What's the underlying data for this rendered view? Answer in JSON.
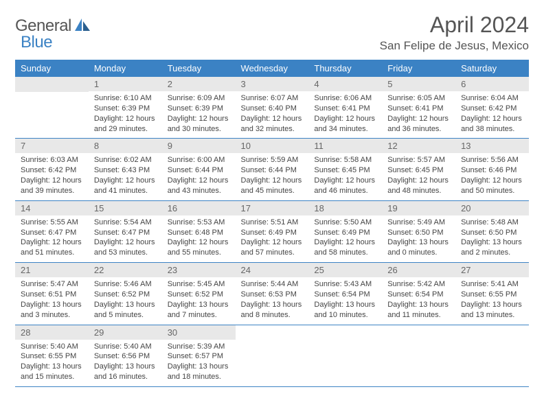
{
  "brand": {
    "general": "General",
    "blue": "Blue"
  },
  "title": "April 2024",
  "location": "San Felipe de Jesus, Mexico",
  "colors": {
    "accent": "#3b82c4",
    "header_text": "#ffffff",
    "daynum_bg": "#e8e8e8",
    "text": "#444444"
  },
  "weekdays": [
    "Sunday",
    "Monday",
    "Tuesday",
    "Wednesday",
    "Thursday",
    "Friday",
    "Saturday"
  ],
  "weeks": [
    [
      null,
      {
        "n": "1",
        "sr": "Sunrise: 6:10 AM",
        "ss": "Sunset: 6:39 PM",
        "dl": "Daylight: 12 hours and 29 minutes."
      },
      {
        "n": "2",
        "sr": "Sunrise: 6:09 AM",
        "ss": "Sunset: 6:39 PM",
        "dl": "Daylight: 12 hours and 30 minutes."
      },
      {
        "n": "3",
        "sr": "Sunrise: 6:07 AM",
        "ss": "Sunset: 6:40 PM",
        "dl": "Daylight: 12 hours and 32 minutes."
      },
      {
        "n": "4",
        "sr": "Sunrise: 6:06 AM",
        "ss": "Sunset: 6:41 PM",
        "dl": "Daylight: 12 hours and 34 minutes."
      },
      {
        "n": "5",
        "sr": "Sunrise: 6:05 AM",
        "ss": "Sunset: 6:41 PM",
        "dl": "Daylight: 12 hours and 36 minutes."
      },
      {
        "n": "6",
        "sr": "Sunrise: 6:04 AM",
        "ss": "Sunset: 6:42 PM",
        "dl": "Daylight: 12 hours and 38 minutes."
      }
    ],
    [
      {
        "n": "7",
        "sr": "Sunrise: 6:03 AM",
        "ss": "Sunset: 6:42 PM",
        "dl": "Daylight: 12 hours and 39 minutes."
      },
      {
        "n": "8",
        "sr": "Sunrise: 6:02 AM",
        "ss": "Sunset: 6:43 PM",
        "dl": "Daylight: 12 hours and 41 minutes."
      },
      {
        "n": "9",
        "sr": "Sunrise: 6:00 AM",
        "ss": "Sunset: 6:44 PM",
        "dl": "Daylight: 12 hours and 43 minutes."
      },
      {
        "n": "10",
        "sr": "Sunrise: 5:59 AM",
        "ss": "Sunset: 6:44 PM",
        "dl": "Daylight: 12 hours and 45 minutes."
      },
      {
        "n": "11",
        "sr": "Sunrise: 5:58 AM",
        "ss": "Sunset: 6:45 PM",
        "dl": "Daylight: 12 hours and 46 minutes."
      },
      {
        "n": "12",
        "sr": "Sunrise: 5:57 AM",
        "ss": "Sunset: 6:45 PM",
        "dl": "Daylight: 12 hours and 48 minutes."
      },
      {
        "n": "13",
        "sr": "Sunrise: 5:56 AM",
        "ss": "Sunset: 6:46 PM",
        "dl": "Daylight: 12 hours and 50 minutes."
      }
    ],
    [
      {
        "n": "14",
        "sr": "Sunrise: 5:55 AM",
        "ss": "Sunset: 6:47 PM",
        "dl": "Daylight: 12 hours and 51 minutes."
      },
      {
        "n": "15",
        "sr": "Sunrise: 5:54 AM",
        "ss": "Sunset: 6:47 PM",
        "dl": "Daylight: 12 hours and 53 minutes."
      },
      {
        "n": "16",
        "sr": "Sunrise: 5:53 AM",
        "ss": "Sunset: 6:48 PM",
        "dl": "Daylight: 12 hours and 55 minutes."
      },
      {
        "n": "17",
        "sr": "Sunrise: 5:51 AM",
        "ss": "Sunset: 6:49 PM",
        "dl": "Daylight: 12 hours and 57 minutes."
      },
      {
        "n": "18",
        "sr": "Sunrise: 5:50 AM",
        "ss": "Sunset: 6:49 PM",
        "dl": "Daylight: 12 hours and 58 minutes."
      },
      {
        "n": "19",
        "sr": "Sunrise: 5:49 AM",
        "ss": "Sunset: 6:50 PM",
        "dl": "Daylight: 13 hours and 0 minutes."
      },
      {
        "n": "20",
        "sr": "Sunrise: 5:48 AM",
        "ss": "Sunset: 6:50 PM",
        "dl": "Daylight: 13 hours and 2 minutes."
      }
    ],
    [
      {
        "n": "21",
        "sr": "Sunrise: 5:47 AM",
        "ss": "Sunset: 6:51 PM",
        "dl": "Daylight: 13 hours and 3 minutes."
      },
      {
        "n": "22",
        "sr": "Sunrise: 5:46 AM",
        "ss": "Sunset: 6:52 PM",
        "dl": "Daylight: 13 hours and 5 minutes."
      },
      {
        "n": "23",
        "sr": "Sunrise: 5:45 AM",
        "ss": "Sunset: 6:52 PM",
        "dl": "Daylight: 13 hours and 7 minutes."
      },
      {
        "n": "24",
        "sr": "Sunrise: 5:44 AM",
        "ss": "Sunset: 6:53 PM",
        "dl": "Daylight: 13 hours and 8 minutes."
      },
      {
        "n": "25",
        "sr": "Sunrise: 5:43 AM",
        "ss": "Sunset: 6:54 PM",
        "dl": "Daylight: 13 hours and 10 minutes."
      },
      {
        "n": "26",
        "sr": "Sunrise: 5:42 AM",
        "ss": "Sunset: 6:54 PM",
        "dl": "Daylight: 13 hours and 11 minutes."
      },
      {
        "n": "27",
        "sr": "Sunrise: 5:41 AM",
        "ss": "Sunset: 6:55 PM",
        "dl": "Daylight: 13 hours and 13 minutes."
      }
    ],
    [
      {
        "n": "28",
        "sr": "Sunrise: 5:40 AM",
        "ss": "Sunset: 6:55 PM",
        "dl": "Daylight: 13 hours and 15 minutes."
      },
      {
        "n": "29",
        "sr": "Sunrise: 5:40 AM",
        "ss": "Sunset: 6:56 PM",
        "dl": "Daylight: 13 hours and 16 minutes."
      },
      {
        "n": "30",
        "sr": "Sunrise: 5:39 AM",
        "ss": "Sunset: 6:57 PM",
        "dl": "Daylight: 13 hours and 18 minutes."
      },
      null,
      null,
      null,
      null
    ]
  ]
}
